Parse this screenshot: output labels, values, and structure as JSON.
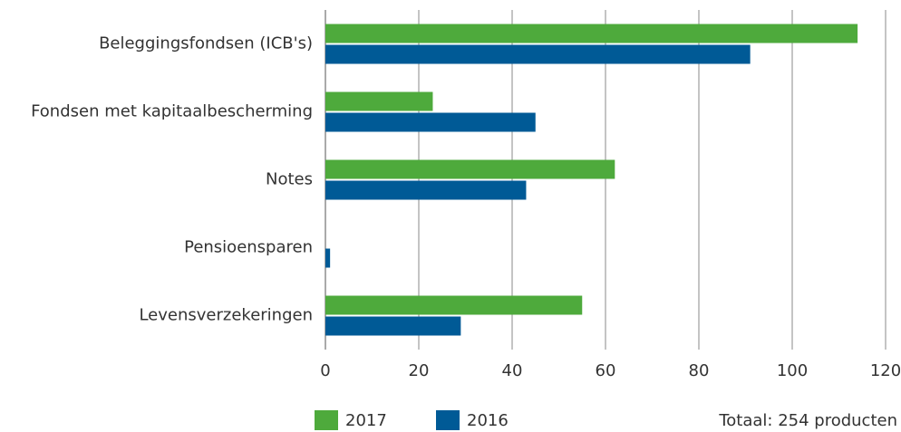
{
  "chart_data": {
    "type": "hbar",
    "categories": [
      "Beleggingsfondsen (ICB's)",
      "Fondsen met kapitaalbescherming",
      "Notes",
      "Pensioensparen",
      "Levensverzekeringen"
    ],
    "series": [
      {
        "name": "2017",
        "color": "#4eaa3c",
        "values": [
          114,
          23,
          62,
          0,
          55
        ]
      },
      {
        "name": "2016",
        "color": "#005a96",
        "values": [
          91,
          45,
          43,
          1,
          29
        ]
      }
    ],
    "xlim": [
      0,
      120
    ],
    "xticks": [
      0,
      20,
      40,
      60,
      80,
      100,
      120
    ],
    "grid": true,
    "annotation": "Totaal: 254 producten"
  }
}
